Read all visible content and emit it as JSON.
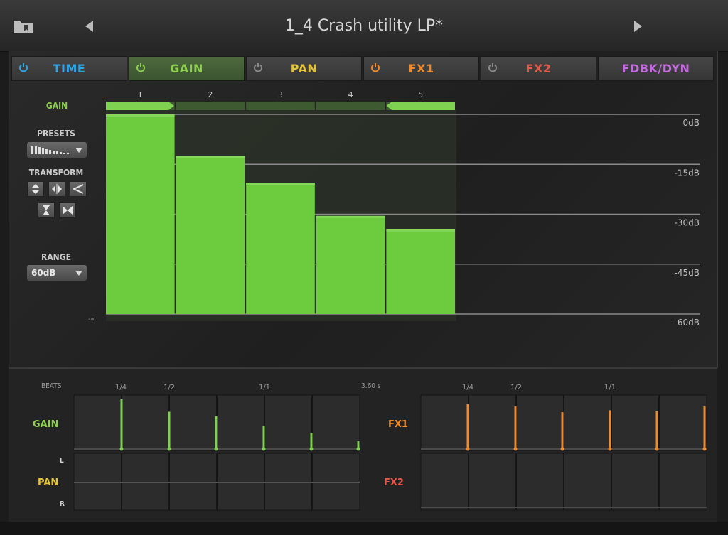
{
  "header": {
    "title": "1_4 Crash utility LP*"
  },
  "tabs": [
    {
      "label": "TIME",
      "color": "#2fa6e6",
      "power_color": "#2fa6e6",
      "active": false,
      "has_power": true
    },
    {
      "label": "GAIN",
      "color": "#8fd14f",
      "power_color": "#8fd14f",
      "active": true,
      "has_power": true
    },
    {
      "label": "PAN",
      "color": "#e3c43a",
      "power_color": "#8a8a8a",
      "active": false,
      "has_power": true
    },
    {
      "label": "FX1",
      "color": "#ef8a2b",
      "power_color": "#ef8a2b",
      "active": false,
      "has_power": true
    },
    {
      "label": "FX2",
      "color": "#e35a4a",
      "power_color": "#8a8a8a",
      "active": false,
      "has_power": true
    },
    {
      "label": "FDBK/DYN",
      "color": "#c46be0",
      "power_color": "#8a8a8a",
      "active": false,
      "has_power": false
    }
  ],
  "sidebar": {
    "gain_label": "GAIN",
    "presets_label": "PRESETS",
    "transform_label": "TRANSFORM",
    "range_label": "RANGE",
    "range_value": "60dB",
    "neg_inf_label": "-∞"
  },
  "gain_colors": {
    "bar": "#6dcb3e",
    "bar_top": "#86d85a",
    "handle": "#7fd152"
  },
  "chart_data": {
    "type": "bar",
    "categories": [
      "1",
      "2",
      "3",
      "4",
      "5"
    ],
    "values": [
      0,
      -12.5,
      -20.5,
      -30.5,
      -34.5
    ],
    "ylim": [
      -60,
      0
    ],
    "unit": "dB",
    "tick_values": [
      0,
      -15,
      -30,
      -45,
      -60
    ],
    "tick_labels": [
      "0dB",
      "-15dB",
      "-30dB",
      "-45dB",
      "-60dB"
    ],
    "loop_start_step": 1,
    "loop_end_step": 5,
    "grid": true
  },
  "timeline": {
    "beats_label": "BEATS",
    "left_ticks": [
      "1/4",
      "1/2",
      "1/1"
    ],
    "duration_label": "3.60 s",
    "right_ticks": [
      "1/4",
      "1/2",
      "1/1"
    ],
    "gain_label": "GAIN",
    "pan_label": "PAN",
    "pan_l": "L",
    "pan_r": "R",
    "fx1_label": "FX1",
    "fx2_label": "FX2",
    "gain_lane_values": [
      1.0,
      0.75,
      0.66,
      0.46,
      0.32,
      0.16
    ],
    "fx1_lane_values": [
      0.9,
      0.86,
      0.74,
      0.78,
      0.76,
      0.86
    ]
  }
}
